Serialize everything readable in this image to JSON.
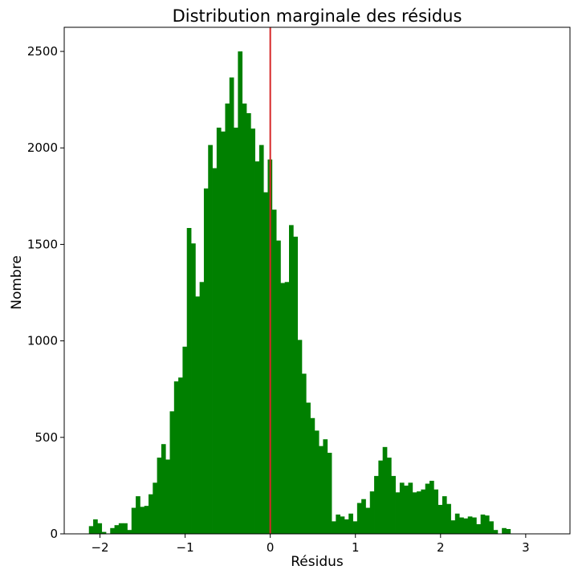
{
  "chart_data": {
    "type": "bar",
    "title": "Distribution marginale des résidus",
    "xlabel": "Résidus",
    "ylabel": "Nombre",
    "xlim": [
      -2.42,
      3.52
    ],
    "ylim": [
      0,
      2625
    ],
    "xticks": [
      -2,
      -1,
      0,
      1,
      2,
      3
    ],
    "xtick_labels": [
      "−2",
      "−1",
      "0",
      "1",
      "2",
      "3"
    ],
    "yticks": [
      0,
      500,
      1000,
      1500,
      2000,
      2500
    ],
    "ytick_labels": [
      "0",
      "500",
      "1000",
      "1500",
      "2000",
      "2500"
    ],
    "bin_start": -2.13,
    "bin_width": 0.05,
    "values": [
      40,
      75,
      55,
      10,
      0,
      30,
      45,
      55,
      55,
      20,
      135,
      195,
      140,
      145,
      205,
      265,
      395,
      465,
      385,
      635,
      790,
      810,
      970,
      1585,
      1505,
      1230,
      1305,
      1790,
      2015,
      1895,
      2105,
      2085,
      2230,
      2365,
      2105,
      2500,
      2230,
      2180,
      2100,
      1930,
      2015,
      1770,
      1940,
      1680,
      1520,
      1300,
      1305,
      1600,
      1540,
      1005,
      830,
      680,
      600,
      535,
      455,
      490,
      420,
      65,
      100,
      90,
      75,
      105,
      65,
      160,
      180,
      135,
      220,
      300,
      380,
      450,
      395,
      300,
      215,
      265,
      250,
      265,
      215,
      220,
      230,
      260,
      275,
      230,
      150,
      195,
      155,
      70,
      105,
      85,
      80,
      90,
      85,
      50,
      100,
      95,
      65,
      20,
      0,
      30,
      25
    ],
    "bar_color": "#008000",
    "vline": {
      "x": 0,
      "color": "#d62728"
    },
    "grid": false,
    "legend": "none"
  }
}
